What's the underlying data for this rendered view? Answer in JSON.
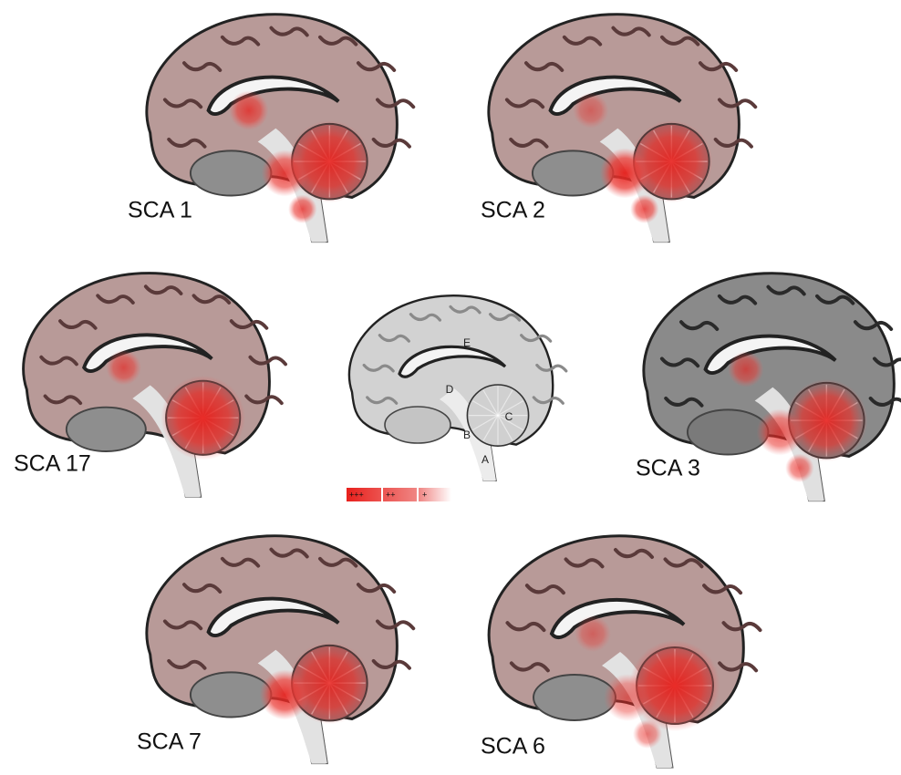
{
  "panels": [
    {
      "label": "SCA 1"
    },
    {
      "label": "SCA 2"
    },
    {
      "label": "SCA 17"
    },
    {
      "label": "SCA 3"
    },
    {
      "label": "SCA 7"
    },
    {
      "label": "SCA 6"
    }
  ],
  "reference": {
    "labels": [
      "E",
      "D",
      "C",
      "B",
      "A"
    ]
  },
  "legend": {
    "labels": [
      "+++",
      "++",
      "+"
    ]
  }
}
